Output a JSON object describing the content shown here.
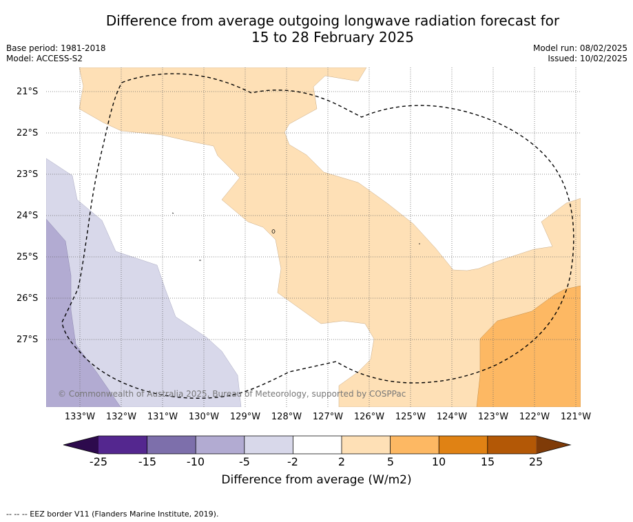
{
  "header": {
    "title_line1": "Difference from average outgoing longwave radiation forecast for",
    "title_line2": "15 to 28 February 2025",
    "base_period": "Base period: 1981-2018",
    "model": "Model: ACCESS-S2",
    "model_run": "Model run: 08/02/2025",
    "issued": "Issued: 10/02/2025"
  },
  "map": {
    "lat_labels": [
      "21°S",
      "22°S",
      "23°S",
      "24°S",
      "25°S",
      "26°S",
      "27°S"
    ],
    "lon_labels": [
      "133°W",
      "132°W",
      "131°W",
      "130°W",
      "129°W",
      "128°W",
      "127°W",
      "126°W",
      "125°W",
      "124°W",
      "123°W",
      "122°W",
      "121°W"
    ],
    "copyright": "© Commonwealth of Australia 2025, Bureau of Meteorology, supported by COSPPac",
    "colors": {
      "lt_minus_25": "#2d0a4d",
      "minus_25_minus_15": "#54278f",
      "minus_15_minus_10": "#7d6fab",
      "minus_10_minus_5": "#b2abd2",
      "minus_5_minus_2": "#d8d8ea",
      "minus_2_2": "#ffffff",
      "2_5": "#fee0b6",
      "5_10": "#fdb863",
      "10_15": "#e08214",
      "15_25": "#b35806",
      "gt_25": "#7f3b08"
    }
  },
  "legend": {
    "ticks": [
      "-25",
      "-15",
      "-10",
      "-5",
      "-2",
      "2",
      "5",
      "10",
      "15",
      "25"
    ],
    "label": "Difference from average (W/m2)"
  },
  "footnote": "--  --  -- EEZ border V11 (Flanders Marine Institute, 2019)."
}
